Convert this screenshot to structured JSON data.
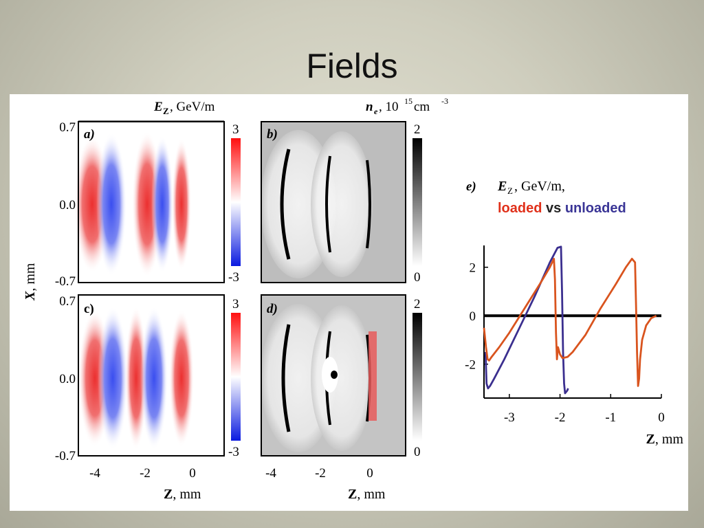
{
  "slide": {
    "title": "Fields"
  },
  "figure": {
    "panel_a": {
      "label": "a)",
      "header": "E",
      "header_sub": "Z",
      "header_unit": ", GeV/m",
      "colorbar_max": "3",
      "colorbar_min": "-3"
    },
    "panel_b": {
      "label": "b)",
      "header": "n",
      "header_sub": "e",
      "header_unit": ", 10",
      "header_exp": "15",
      "header_unit2": " cm",
      "header_exp2": "-3",
      "colorbar_max": "2",
      "colorbar_min": "0"
    },
    "panel_c": {
      "label": "c)",
      "colorbar_max": "3",
      "colorbar_min": "-3"
    },
    "panel_d": {
      "label": "d)",
      "colorbar_max": "2",
      "colorbar_min": "0"
    },
    "y_axis": {
      "label_var": "X",
      "label_unit": ", mm",
      "ticks": [
        "0.7",
        "0.0",
        "-0.7"
      ]
    },
    "x_axis_left": {
      "label_var": "Z",
      "label_unit": ", mm",
      "ticks": [
        "-4",
        "-2",
        "0"
      ]
    },
    "panel_e": {
      "label": "e)",
      "title_var": "E",
      "title_sub": "Z",
      "title_unit": ", GeV/m,",
      "legend_loaded": "loaded",
      "legend_vs": " vs ",
      "legend_unloaded": "unloaded",
      "loaded_color": "#d9541e",
      "unloaded_color": "#3b2f8f"
    }
  },
  "chart_data": {
    "type": "line",
    "title": "",
    "xlabel": "Z, mm",
    "ylabel": "",
    "xlim": [
      -3.5,
      0
    ],
    "ylim": [
      -3.4,
      2.9
    ],
    "xticks": [
      "-3",
      "-2",
      "-1",
      "0"
    ],
    "yticks": [
      "2",
      "0",
      "-2"
    ],
    "series": [
      {
        "name": "unloaded",
        "color": "#3b2f8f",
        "x": [
          -3.47,
          -3.45,
          -3.42,
          -3.38,
          -3.3,
          -3.1,
          -2.8,
          -2.5,
          -2.2,
          -2.05,
          -1.98,
          -1.96,
          -1.94,
          -1.92,
          -1.9,
          -1.86,
          -1.84
        ],
        "y": [
          -1.5,
          -2.8,
          -3.0,
          -2.9,
          -2.6,
          -1.8,
          -0.5,
          0.8,
          2.2,
          2.8,
          2.85,
          1.0,
          -1.5,
          -2.8,
          -3.2,
          -3.1,
          -3.0
        ]
      },
      {
        "name": "loaded",
        "color": "#d9541e",
        "x": [
          -3.5,
          -3.46,
          -3.43,
          -3.4,
          -3.35,
          -3.2,
          -3.0,
          -2.7,
          -2.4,
          -2.2,
          -2.12,
          -2.1,
          -2.08,
          -2.06,
          -2.04,
          -2.0,
          -1.95,
          -1.85,
          -1.75,
          -1.5,
          -1.2,
          -0.9,
          -0.7,
          -0.58,
          -0.52,
          -0.5,
          -0.48,
          -0.46,
          -0.44,
          -0.42,
          -0.38,
          -0.3,
          -0.2,
          -0.1
        ],
        "y": [
          -0.5,
          -1.3,
          -1.8,
          -1.85,
          -1.7,
          -1.3,
          -0.7,
          0.3,
          1.3,
          2.0,
          2.35,
          1.5,
          -0.7,
          -1.8,
          -1.3,
          -1.6,
          -1.75,
          -1.7,
          -1.5,
          -0.8,
          0.3,
          1.3,
          2.0,
          2.35,
          2.2,
          0.5,
          -1.5,
          -2.9,
          -2.6,
          -1.8,
          -1.0,
          -0.4,
          -0.1,
          0.0
        ]
      }
    ],
    "zero_line": true
  }
}
